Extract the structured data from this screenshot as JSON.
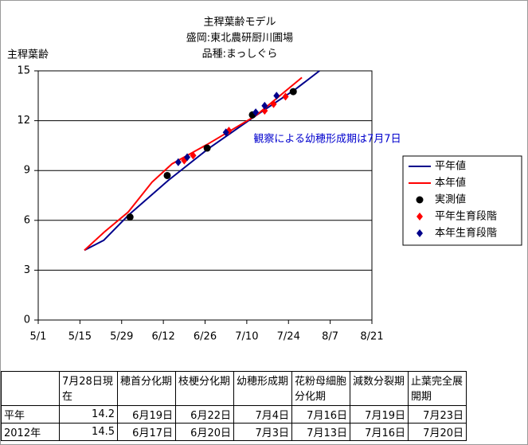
{
  "chart_data": {
    "type": "line",
    "title": [
      "主稈葉齢モデル",
      "盛岡:東北農研厨川圃場",
      "品種:まっしぐら"
    ],
    "y_label": "主稈葉齢",
    "annotation": "観察による幼穂形成期は7月7日",
    "xlim": [
      0,
      112
    ],
    "xticks": [
      {
        "value": 0,
        "label": "5/1"
      },
      {
        "value": 14,
        "label": "5/15"
      },
      {
        "value": 28,
        "label": "5/29"
      },
      {
        "value": 42,
        "label": "6/12"
      },
      {
        "value": 56,
        "label": "6/26"
      },
      {
        "value": 70,
        "label": "7/10"
      },
      {
        "value": 84,
        "label": "7/24"
      },
      {
        "value": 98,
        "label": "8/7"
      },
      {
        "value": 112,
        "label": "8/21"
      }
    ],
    "ylim": [
      0,
      15
    ],
    "yticks": [
      0,
      3,
      6,
      9,
      12,
      15
    ],
    "grid": true,
    "series": [
      {
        "name": "平年値",
        "color": "#00008b",
        "marker": "line",
        "x": [
          15.5,
          22,
          30.2,
          43.6,
          57,
          73,
          86.4,
          94.4
        ],
        "values": [
          4.2,
          4.8,
          6.3,
          8.4,
          10.3,
          12.3,
          13.9,
          15
        ]
      },
      {
        "name": "本年値",
        "color": "#ff0000",
        "marker": "line",
        "x": [
          15.5,
          22.2,
          30.2,
          38.2,
          44.9,
          57,
          73,
          88.5
        ],
        "values": [
          4.2,
          5.3,
          6.5,
          8.3,
          9.4,
          10.6,
          12.3,
          14.6
        ]
      },
      {
        "name": "実測値",
        "color": "#000000",
        "marker": "circle",
        "x": [
          30.8,
          43.3,
          56.7,
          71.9,
          85.6
        ],
        "values": [
          6.2,
          8.7,
          10.35,
          12.35,
          13.75
        ]
      },
      {
        "name": "平年生育段階",
        "color": "#ff0000",
        "marker": "diamond",
        "x": [
          49,
          52,
          64,
          76,
          79,
          83
        ],
        "values": [
          9.6,
          9.9,
          11.4,
          12.6,
          13.0,
          13.45
        ]
      },
      {
        "name": "本年生育段階",
        "color": "#00008b",
        "marker": "diamond",
        "x": [
          47,
          50,
          63,
          73,
          76,
          80
        ],
        "values": [
          9.5,
          9.8,
          11.3,
          12.5,
          12.9,
          13.5
        ]
      }
    ]
  },
  "table": {
    "header": [
      "",
      "7月28日現在",
      "穂首分化期",
      "枝梗分化期",
      "幼穂形成期",
      "花粉母細胞分化期",
      "減数分裂期",
      "止葉完全展開期"
    ],
    "rows": [
      [
        "平年",
        14.2,
        "6月19日",
        "6月22日",
        "7月4日",
        "7月16日",
        "7月19日",
        "7月23日"
      ],
      [
        "2012年",
        14.5,
        "6月17日",
        "6月20日",
        "7月3日",
        "7月13日",
        "7月16日",
        "7月20日"
      ]
    ]
  }
}
